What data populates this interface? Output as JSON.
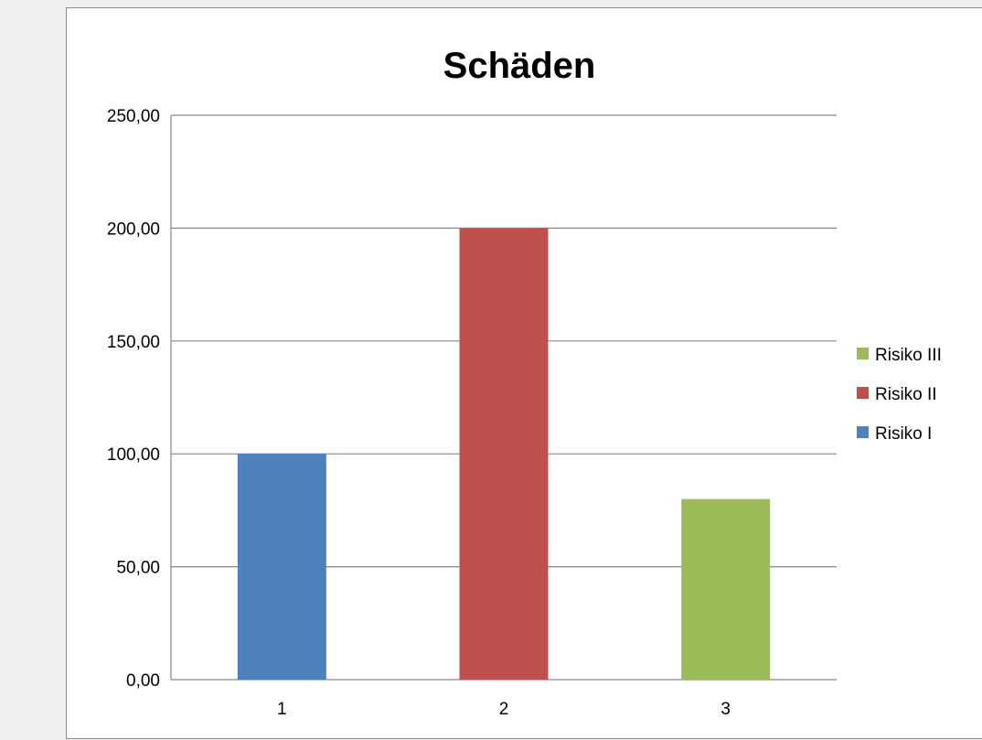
{
  "chart_data": {
    "type": "bar",
    "title": "Schäden",
    "xlabel": "",
    "ylabel": "",
    "categories": [
      "1",
      "2",
      "3"
    ],
    "ylim": [
      0,
      250
    ],
    "yticks": [
      0,
      50,
      100,
      150,
      200,
      250
    ],
    "ytick_labels": [
      "0,00",
      "50,00",
      "100,00",
      "150,00",
      "200,00",
      "250,00"
    ],
    "grid": true,
    "legend_position": "right",
    "series": [
      {
        "name": "Risiko I",
        "color": "#4f81bd",
        "values": [
          100,
          0,
          0
        ]
      },
      {
        "name": "Risiko II",
        "color": "#c0504d",
        "values": [
          0,
          200,
          0
        ]
      },
      {
        "name": "Risiko III",
        "color": "#9bbb59",
        "values": [
          0,
          0,
          80
        ]
      }
    ],
    "legend_order": [
      "Risiko III",
      "Risiko II",
      "Risiko I"
    ]
  }
}
